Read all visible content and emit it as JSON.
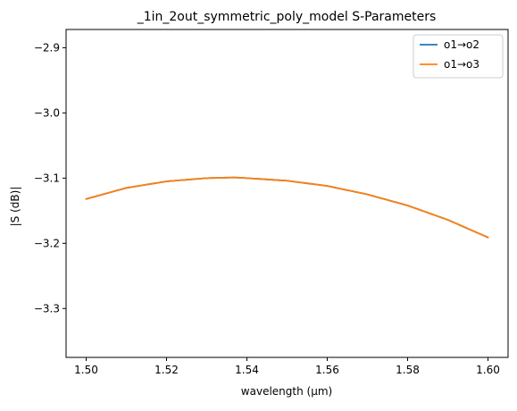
{
  "chart_data": {
    "type": "line",
    "title": "_1in_2out_symmetric_poly_model S-Parameters",
    "xlabel": "wavelength (µm)",
    "ylabel": "|S (dB)|",
    "xlim": [
      1.495,
      1.605
    ],
    "ylim": [
      -3.375,
      -2.872
    ],
    "xticks": [
      1.5,
      1.52,
      1.54,
      1.56,
      1.58,
      1.6
    ],
    "xtick_labels": [
      "1.50",
      "1.52",
      "1.54",
      "1.56",
      "1.58",
      "1.60"
    ],
    "yticks": [
      -2.9,
      -3.0,
      -3.1,
      -3.2,
      -3.3
    ],
    "ytick_labels": [
      "−2.9",
      "−3.0",
      "−3.1",
      "−3.2",
      "−3.3"
    ],
    "grid": false,
    "legend_position": "top-right",
    "x": [
      1.5,
      1.51,
      1.52,
      1.53,
      1.537,
      1.54,
      1.55,
      1.56,
      1.57,
      1.58,
      1.59,
      1.6
    ],
    "series": [
      {
        "name": "o1→o2",
        "color": "#1f77b4",
        "values": [
          -3.132,
          -3.115,
          -3.105,
          -3.1,
          -3.099,
          -3.1,
          -3.104,
          -3.112,
          -3.125,
          -3.142,
          -3.164,
          -3.191
        ]
      },
      {
        "name": "o1→o3",
        "color": "#ff7f0e",
        "values": [
          -3.132,
          -3.115,
          -3.105,
          -3.1,
          -3.099,
          -3.1,
          -3.104,
          -3.112,
          -3.125,
          -3.142,
          -3.164,
          -3.191
        ]
      }
    ]
  }
}
